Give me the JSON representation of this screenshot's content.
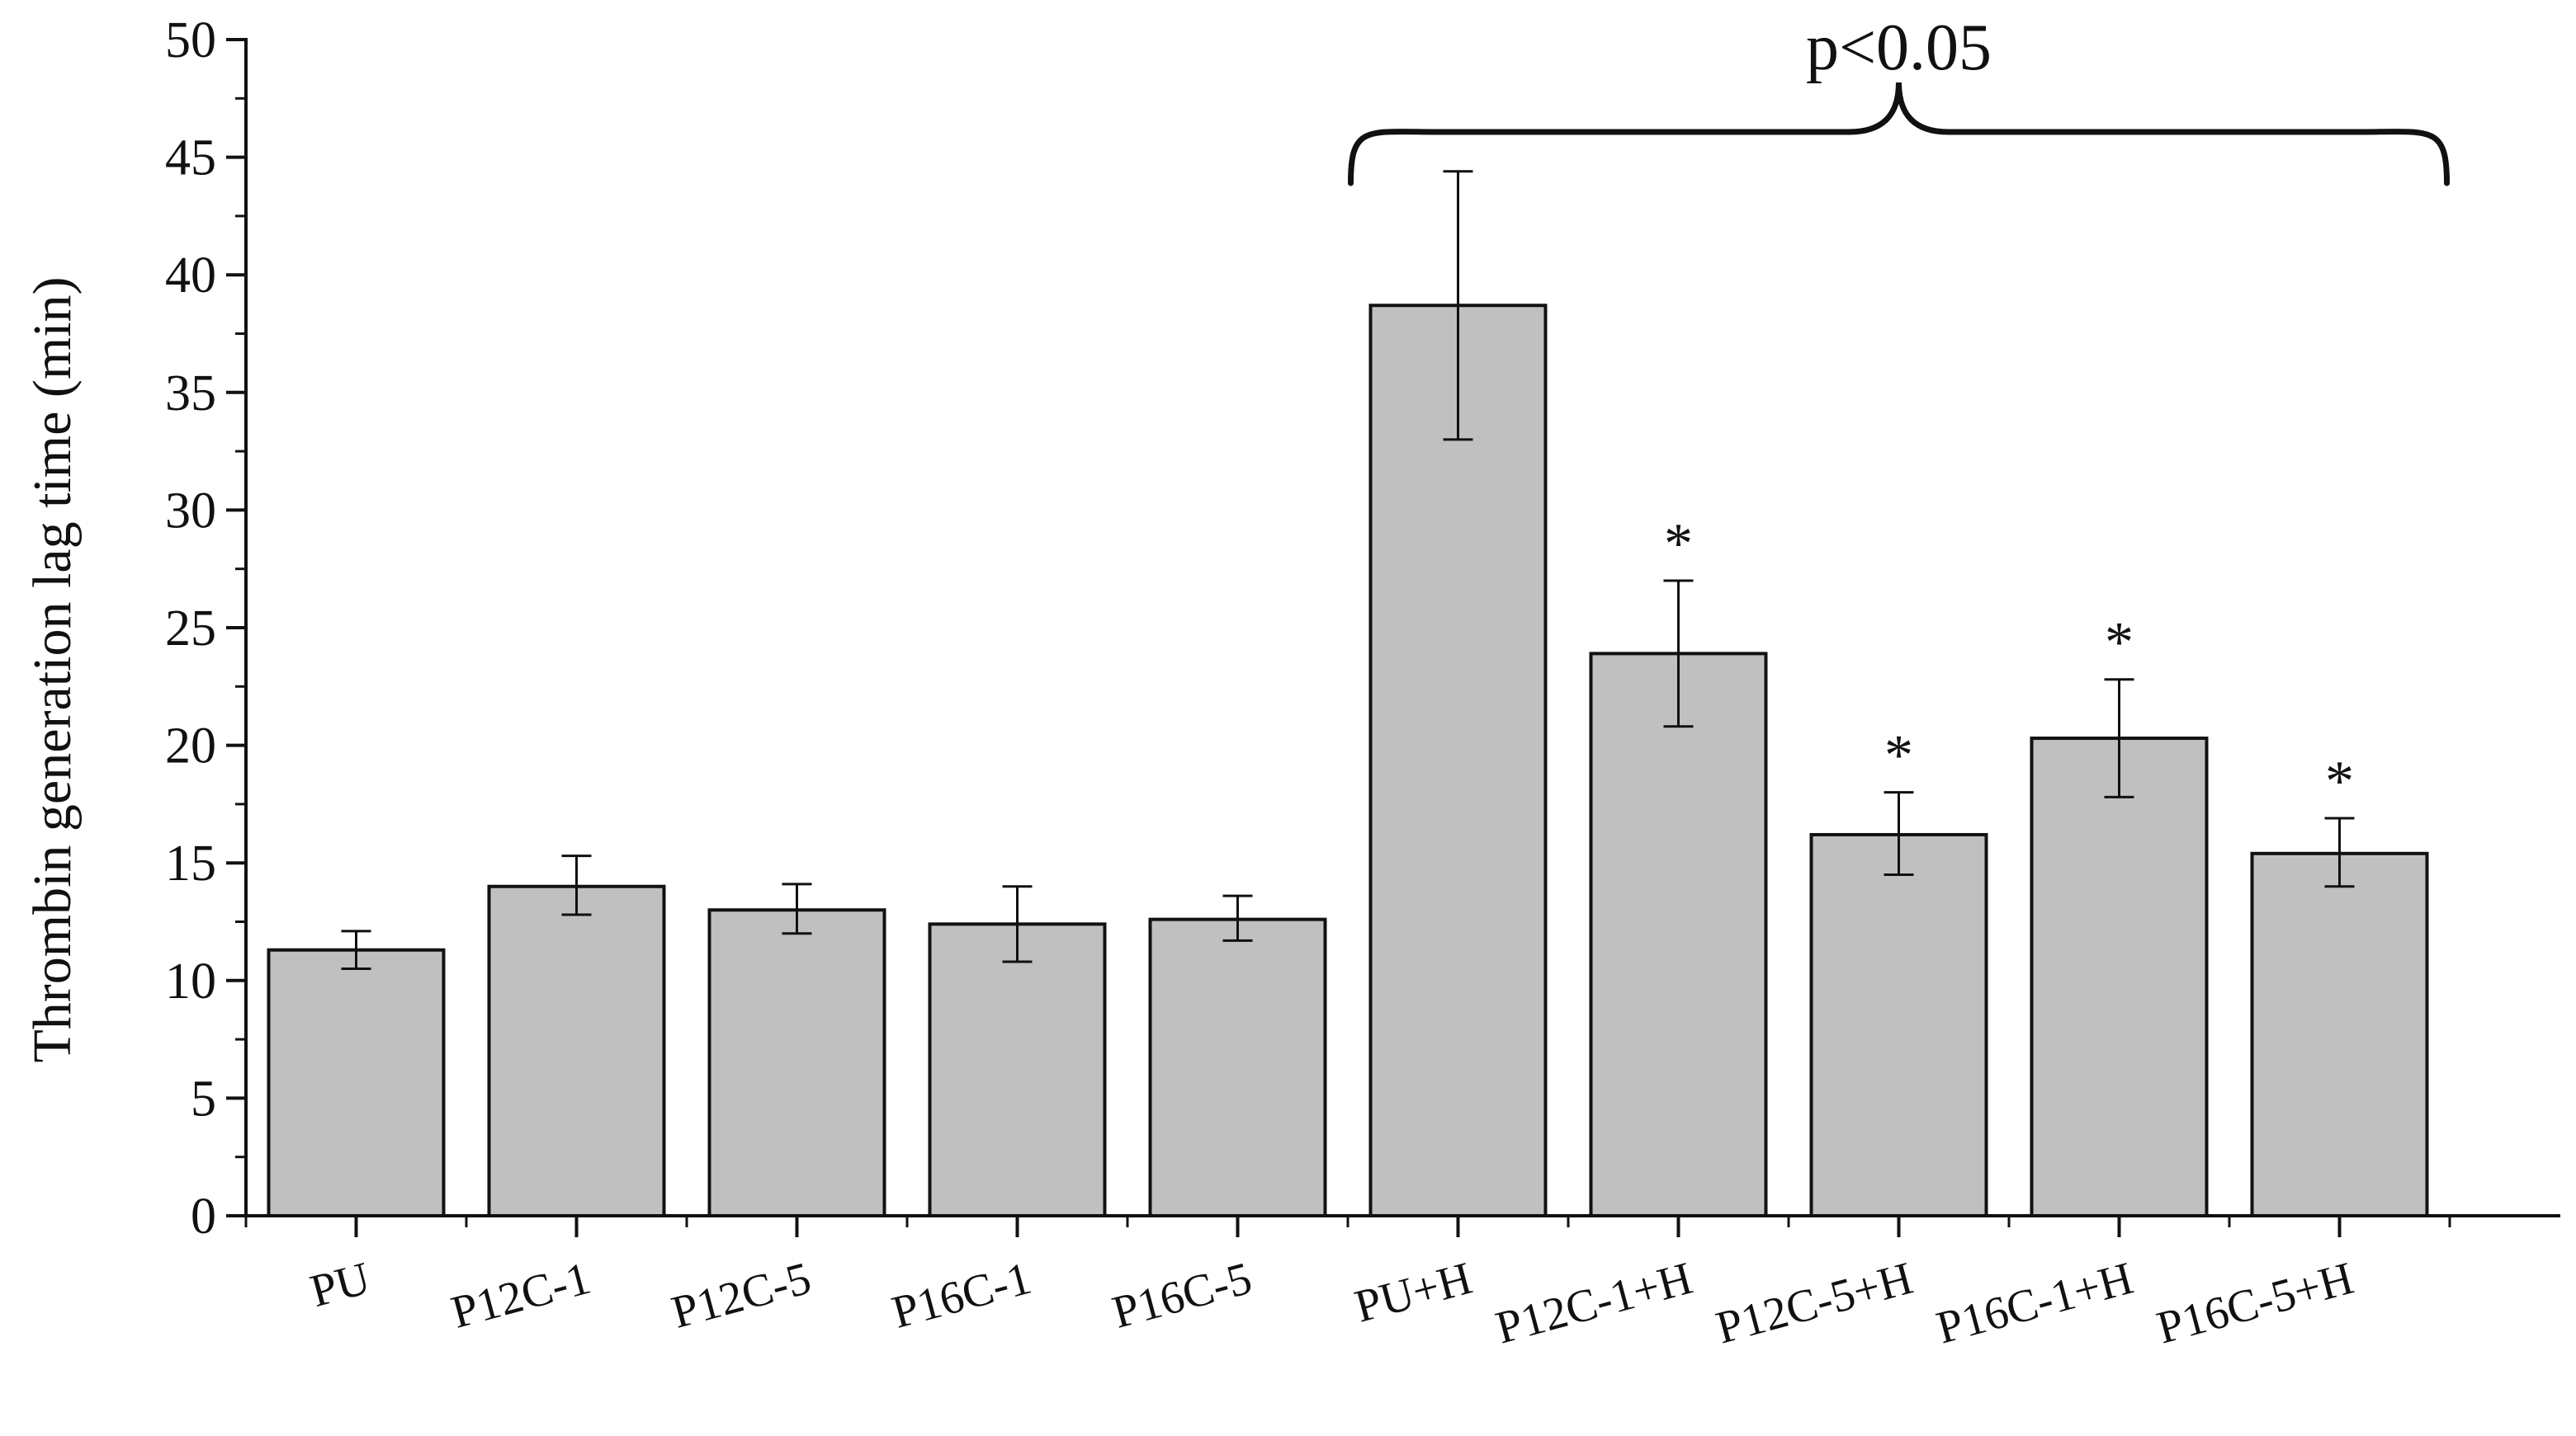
{
  "chart_data": {
    "type": "bar",
    "title": "",
    "xlabel": "",
    "ylabel": "Thrombin generation lag time (min)",
    "ylim": [
      0,
      50
    ],
    "yticks": [
      "0",
      "5",
      "10",
      "15",
      "20",
      "25",
      "30",
      "35",
      "40",
      "45",
      "50"
    ],
    "categories": [
      "PU",
      "P12C-1",
      "P12C-5",
      "P16C-1",
      "P16C-5",
      "PU+H",
      "P12C-1+H",
      "P12C-5+H",
      "P16C-1+H",
      "P16C-5+H"
    ],
    "values": [
      11.3,
      14.0,
      13.0,
      12.4,
      12.6,
      38.7,
      23.9,
      16.2,
      20.3,
      15.4
    ],
    "error_low": [
      10.5,
      12.8,
      12.0,
      10.8,
      11.7,
      33.0,
      20.8,
      14.5,
      17.8,
      14.0
    ],
    "error_high": [
      12.1,
      15.3,
      14.1,
      14.0,
      13.6,
      44.4,
      27.0,
      18.0,
      22.8,
      16.9
    ],
    "significance_markers": [
      "",
      "",
      "",
      "",
      "",
      "",
      "*",
      "*",
      "*",
      "*"
    ],
    "bracket": {
      "label": "p<0.05",
      "from_category": "PU+H",
      "to_category": "P16C-5+H"
    },
    "colors": {
      "bar_fill": "#c0c0c0",
      "bar_stroke": "#111111",
      "axis": "#111111"
    },
    "grid": false
  }
}
